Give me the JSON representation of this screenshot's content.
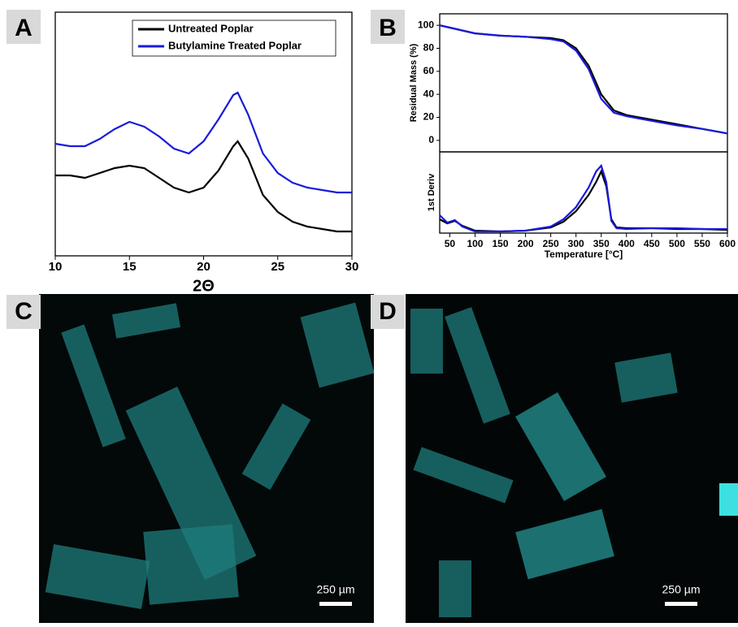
{
  "chart_data": [
    {
      "type": "line",
      "panel": "A",
      "xlabel": "2Θ",
      "xlim": [
        10,
        30
      ],
      "xticks": [
        10,
        15,
        20,
        25,
        30
      ],
      "ylim": [
        0,
        100
      ],
      "legend": "top",
      "x": [
        10,
        11,
        12,
        13,
        14,
        15,
        16,
        17,
        18,
        19,
        20,
        21,
        22,
        22.3,
        23,
        24,
        25,
        26,
        27,
        28,
        29,
        30
      ],
      "series": [
        {
          "name": "Untreated Poplar",
          "color": "#000000",
          "values": [
            33,
            33,
            32,
            34,
            36,
            37,
            36,
            32,
            28,
            26,
            28,
            35,
            45,
            47,
            40,
            25,
            18,
            14,
            12,
            11,
            10,
            10
          ]
        },
        {
          "name": "Butylamine Treated Poplar",
          "color": "#1a1adb",
          "values": [
            46,
            45,
            45,
            48,
            52,
            55,
            53,
            49,
            44,
            42,
            47,
            56,
            66,
            67,
            58,
            42,
            34,
            30,
            28,
            27,
            26,
            26
          ]
        }
      ]
    },
    {
      "type": "line",
      "panel": "B",
      "ylabel": "Residual Mass (%)",
      "xlim": [
        30,
        600
      ],
      "ylim": [
        -10,
        110
      ],
      "yticks": [
        0,
        20,
        40,
        60,
        80,
        100
      ],
      "x": [
        30,
        50,
        100,
        150,
        200,
        250,
        275,
        300,
        325,
        350,
        375,
        400,
        450,
        500,
        550,
        600
      ],
      "series": [
        {
          "color": "#000000",
          "values": [
            100,
            98,
            93,
            91,
            90,
            89,
            87,
            80,
            65,
            40,
            26,
            22,
            18,
            14,
            10,
            6
          ]
        },
        {
          "color": "#1a1adb",
          "values": [
            100,
            98,
            93,
            91,
            90,
            88,
            86,
            78,
            62,
            36,
            24,
            21,
            17,
            13,
            10,
            6
          ]
        }
      ]
    },
    {
      "type": "line",
      "ylabel": "1st Deriv",
      "xlabel": "Temperature [°C]",
      "xlim": [
        30,
        600
      ],
      "ylim": [
        0,
        100
      ],
      "xticks": [
        50,
        100,
        150,
        200,
        250,
        300,
        350,
        400,
        450,
        500,
        550,
        600
      ],
      "x": [
        30,
        45,
        60,
        75,
        100,
        150,
        200,
        250,
        275,
        300,
        325,
        340,
        350,
        360,
        370,
        380,
        400,
        450,
        500,
        550,
        600
      ],
      "series": [
        {
          "color": "#000000",
          "values": [
            17,
            12,
            15,
            9,
            3,
            2,
            3,
            7,
            14,
            27,
            47,
            63,
            76,
            58,
            17,
            7,
            6,
            6,
            5,
            5,
            4
          ]
        },
        {
          "color": "#1a1adb",
          "values": [
            22,
            13,
            16,
            8,
            2,
            2,
            3,
            8,
            17,
            32,
            56,
            76,
            83,
            63,
            15,
            6,
            5,
            6,
            6,
            5,
            5
          ]
        }
      ]
    }
  ],
  "images": [
    {
      "panel": "C",
      "scale_bar": "250 µm"
    },
    {
      "panel": "D",
      "scale_bar": "250 µm"
    }
  ]
}
